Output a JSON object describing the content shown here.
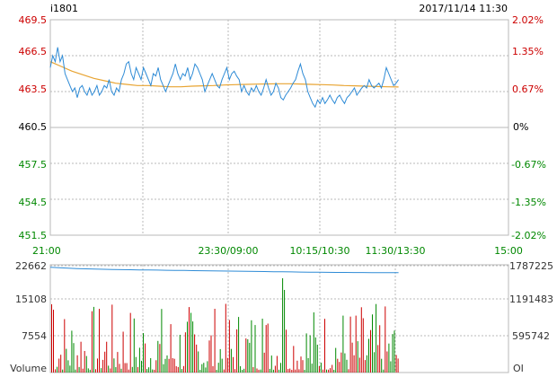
{
  "header": {
    "symbol": "i1801",
    "datetime": "2017/11/14 11:30"
  },
  "colors": {
    "up": "#cc0000",
    "down": "#008800",
    "flat": "#000000",
    "price_line": "#2e8bd6",
    "avg_line": "#e8a432",
    "oi_line": "#2e8bd6",
    "grid": "#b8b8b8",
    "axis_text": "#000000"
  },
  "chart_data": [
    {
      "type": "line",
      "name": "intraday-price",
      "ylim": [
        451.5,
        469.5
      ],
      "base_price": 460.5,
      "price_ticks": [
        "469.5",
        "466.5",
        "463.5",
        "460.5",
        "457.5",
        "454.5",
        "451.5"
      ],
      "pct_ticks": [
        "2.02%",
        "1.35%",
        "0.67%",
        "0%",
        "-0.67%",
        "-1.35%",
        "-2.02%"
      ],
      "time_ticks": [
        "21:00",
        "23:30/09:00",
        "10:15/10:30",
        "11:30/13:30",
        "15:00"
      ],
      "price": [
        465.5,
        466.5,
        466,
        467.2,
        466,
        466.5,
        465,
        464.5,
        464,
        463.5,
        463.8,
        463,
        463.8,
        464,
        463.5,
        463.2,
        463.8,
        463.2,
        463.5,
        464,
        463.2,
        463.5,
        464,
        463.8,
        464.5,
        463.5,
        463.2,
        463.8,
        463.5,
        464.5,
        465,
        465.8,
        466,
        465,
        464.5,
        465.5,
        465,
        464.5,
        465.5,
        465,
        464.5,
        464,
        465,
        464.8,
        465.5,
        464.5,
        464,
        463.5,
        464,
        464.5,
        465,
        465.8,
        465,
        464.5,
        465,
        464.8,
        465.5,
        464.5,
        465,
        465.8,
        465.5,
        465,
        464.5,
        463.5,
        464,
        464.5,
        465,
        464.5,
        464,
        463.8,
        464.5,
        465,
        465.5,
        464.5,
        465,
        465.2,
        464.8,
        464.5,
        463.5,
        464,
        463.5,
        463.2,
        463.8,
        463.5,
        464,
        463.5,
        463.2,
        463.8,
        464.5,
        463.8,
        463.2,
        463.5,
        464.2,
        463.8,
        463,
        462.8,
        463.2,
        463.5,
        463.8,
        464.2,
        464.5,
        465.2,
        465.8,
        465,
        464.5,
        463.5,
        463,
        462.5,
        462.2,
        462.8,
        462.5,
        463,
        462.5,
        462.8,
        463.2,
        462.8,
        462.5,
        463,
        463.2,
        462.8,
        462.5,
        463,
        463.2,
        463.5,
        463.8,
        463.2,
        463.5,
        463.8,
        464,
        463.8,
        464.5,
        464,
        463.8,
        464,
        464.2,
        463.8,
        464.5,
        465.5,
        465,
        464.5,
        464,
        464.2,
        464.5
      ],
      "avg": [
        466,
        465.6,
        465.2,
        464.9,
        464.6,
        464.4,
        464.2,
        464.1,
        464,
        464,
        463.95,
        463.9,
        463.9,
        463.95,
        463.98,
        464,
        464.05,
        464.08,
        464.1,
        464.12,
        464.14,
        464.15,
        464.15,
        464.13,
        464.1,
        464.08,
        464.05,
        464,
        463.98,
        463.95,
        463.92,
        463.9,
        463.88
      ],
      "series": [
        {
          "name": "price"
        },
        {
          "name": "avg"
        }
      ]
    },
    {
      "type": "bar",
      "name": "volume-oi",
      "vol_ticks": [
        "22662",
        "15108",
        "7554",
        "Volume"
      ],
      "oi_ticks": [
        "1787225",
        "1191483",
        "595742",
        "OI"
      ],
      "vol_max": 22662,
      "oi_range": [
        0,
        1787225
      ],
      "oi": [
        1745000,
        1738000,
        1731000,
        1725000,
        1720000,
        1716000,
        1713000,
        1710000,
        1707000,
        1705000,
        1703000,
        1701000,
        1699000,
        1697000,
        1695000,
        1693000,
        1691000,
        1689000,
        1687000,
        1685000,
        1683000,
        1681000,
        1679000,
        1677000,
        1675000,
        1673000,
        1671000,
        1669000,
        1667000,
        1665000,
        1663000,
        1662000,
        1661000,
        1660000,
        1659000,
        1659000,
        1658000,
        1658000,
        1657000,
        1657000
      ]
    }
  ]
}
